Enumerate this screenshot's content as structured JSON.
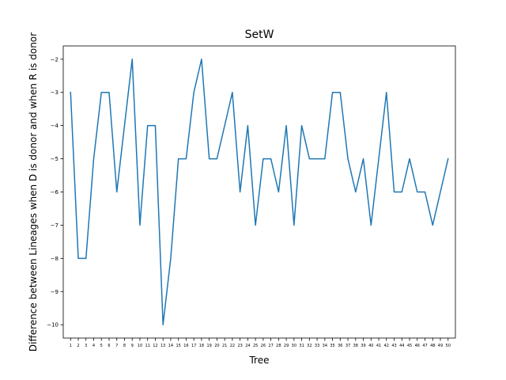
{
  "chart_data": {
    "type": "line",
    "title": "SetW",
    "xlabel": "Tree",
    "ylabel": "Difference between Lineages when D is donor and when R is donor",
    "x": [
      1,
      2,
      3,
      4,
      5,
      6,
      7,
      8,
      9,
      10,
      11,
      12,
      13,
      14,
      15,
      16,
      17,
      18,
      19,
      20,
      21,
      22,
      23,
      24,
      25,
      26,
      27,
      28,
      29,
      30,
      31,
      32,
      33,
      34,
      35,
      36,
      37,
      38,
      39,
      40,
      41,
      42,
      43,
      44,
      45,
      46,
      47,
      48,
      49,
      50
    ],
    "series": [
      {
        "values": [
          -3,
          -8,
          -8,
          -5,
          -3,
          -3,
          -6,
          -4,
          -2,
          -7,
          -4,
          -4,
          -10,
          -8,
          -5,
          -5,
          -3,
          -2,
          -5,
          -5,
          -4,
          -3,
          -6,
          -4,
          -7,
          -5,
          -5,
          -6,
          -4,
          -7,
          -4,
          -5,
          -5,
          -5,
          -3,
          -3,
          -5,
          -6,
          -5,
          -7,
          -5,
          -3,
          -6,
          -6,
          -5,
          -6,
          -6,
          -7,
          -6,
          -5
        ],
        "color": "#1f77b4"
      }
    ],
    "xlim": [
      0.05,
      50.95
    ],
    "ylim": [
      -10.4,
      -1.6
    ],
    "yticks": [
      -10,
      -9,
      -8,
      -7,
      -6,
      -5,
      -4,
      -3,
      -2
    ],
    "grid": false,
    "legend": "none"
  }
}
